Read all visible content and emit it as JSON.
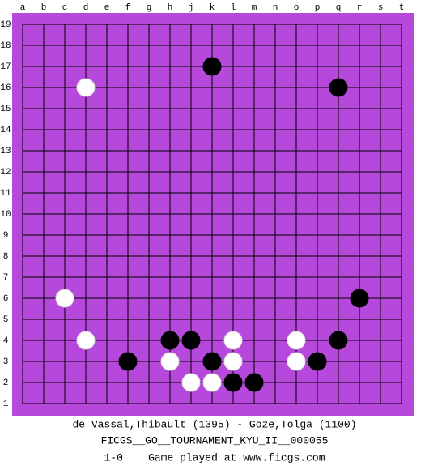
{
  "board": {
    "columns": [
      "a",
      "b",
      "c",
      "d",
      "e",
      "f",
      "g",
      "h",
      "j",
      "k",
      "l",
      "m",
      "n",
      "o",
      "p",
      "q",
      "r",
      "s",
      "t"
    ],
    "rows": [
      19,
      18,
      17,
      16,
      15,
      14,
      13,
      12,
      11,
      10,
      9,
      8,
      7,
      6,
      5,
      4,
      3,
      2,
      1
    ],
    "stones": [
      {
        "color": "black",
        "col": "k",
        "row": 17
      },
      {
        "color": "black",
        "col": "q",
        "row": 16
      },
      {
        "color": "white",
        "col": "d",
        "row": 16
      },
      {
        "color": "white",
        "col": "c",
        "row": 6
      },
      {
        "color": "black",
        "col": "r",
        "row": 6
      },
      {
        "color": "white",
        "col": "d",
        "row": 4
      },
      {
        "color": "black",
        "col": "h",
        "row": 4
      },
      {
        "color": "black",
        "col": "j",
        "row": 4
      },
      {
        "color": "white",
        "col": "l",
        "row": 4
      },
      {
        "color": "white",
        "col": "o",
        "row": 4
      },
      {
        "color": "black",
        "col": "q",
        "row": 4
      },
      {
        "color": "black",
        "col": "f",
        "row": 3
      },
      {
        "color": "white",
        "col": "h",
        "row": 3
      },
      {
        "color": "black",
        "col": "k",
        "row": 3
      },
      {
        "color": "white",
        "col": "l",
        "row": 3
      },
      {
        "color": "white",
        "col": "o",
        "row": 3
      },
      {
        "color": "black",
        "col": "p",
        "row": 3
      },
      {
        "color": "white",
        "col": "j",
        "row": 2
      },
      {
        "color": "white",
        "col": "k",
        "row": 2
      },
      {
        "color": "black",
        "col": "l",
        "row": 2
      },
      {
        "color": "black",
        "col": "m",
        "row": 2
      }
    ]
  },
  "footer": {
    "players": "de Vassal,Thibault (1395) - Goze,Tolga (1100)",
    "event": "FICGS__GO__TOURNAMENT_KYU_II__000055",
    "result": "1-0    Game played at www.ficgs.com"
  }
}
